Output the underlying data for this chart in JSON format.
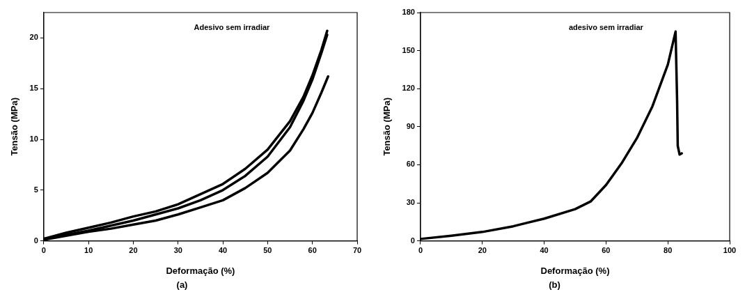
{
  "chart_data": [
    {
      "type": "line",
      "title": "(a)",
      "xlabel": "Deformação (%)",
      "ylabel": "Tensão (MPa)",
      "annotations": [
        "Adesivo sem irradiar"
      ],
      "xlim": [
        0,
        70
      ],
      "xticks": [
        0,
        10,
        20,
        30,
        40,
        50,
        60,
        70
      ],
      "ylim": [
        0,
        22.5
      ],
      "yticks": [
        0,
        5,
        10,
        15,
        20
      ],
      "grid": false,
      "legend": false,
      "marker": "none",
      "line_style": "solid",
      "series": [
        {
          "color": "#000000",
          "x": [
            0,
            5,
            10,
            15,
            20,
            25,
            30,
            35,
            40,
            45,
            50,
            55,
            58,
            60,
            62,
            63.3
          ],
          "values": [
            0.2,
            0.8,
            1.3,
            1.8,
            2.4,
            2.9,
            3.6,
            4.6,
            5.6,
            7.1,
            9.0,
            11.8,
            14.2,
            16.3,
            18.8,
            20.7
          ]
        },
        {
          "color": "#000000",
          "x": [
            0,
            5,
            10,
            15,
            20,
            25,
            30,
            35,
            40,
            45,
            50,
            55,
            58,
            60,
            62,
            63.3
          ],
          "values": [
            0.2,
            0.6,
            1.0,
            1.5,
            2.0,
            2.6,
            3.2,
            4.0,
            5.0,
            6.4,
            8.3,
            11.2,
            13.8,
            15.9,
            18.5,
            20.3
          ]
        },
        {
          "color": "#000000",
          "x": [
            0,
            5,
            10,
            15,
            20,
            25,
            30,
            35,
            40,
            45,
            50,
            55,
            58,
            60,
            62,
            63.5
          ],
          "values": [
            0.1,
            0.5,
            0.9,
            1.2,
            1.6,
            2.0,
            2.6,
            3.3,
            4.0,
            5.2,
            6.7,
            8.9,
            11.0,
            12.6,
            14.6,
            16.2
          ]
        }
      ]
    },
    {
      "type": "line",
      "title": "(b)",
      "xlabel": "Deformação (%)",
      "ylabel": "Tensão (MPa)",
      "annotations": [
        "adesivo sem irradiar"
      ],
      "xlim": [
        0,
        100
      ],
      "xticks": [
        0,
        20,
        40,
        60,
        80,
        100
      ],
      "ylim": [
        0,
        180
      ],
      "yticks": [
        0,
        30,
        60,
        90,
        120,
        150,
        180
      ],
      "grid": false,
      "legend": false,
      "marker": "none",
      "line_style": "solid",
      "series": [
        {
          "color": "#000000",
          "x": [
            0,
            10,
            20,
            30,
            40,
            50,
            55,
            60,
            65,
            70,
            75,
            80,
            82.5,
            83,
            83.2,
            83.8,
            84.5
          ],
          "values": [
            1.5,
            4,
            7,
            11.5,
            17.5,
            25,
            31,
            44,
            61,
            81,
            106,
            139,
            165,
            110,
            75,
            68,
            69
          ]
        }
      ]
    }
  ]
}
